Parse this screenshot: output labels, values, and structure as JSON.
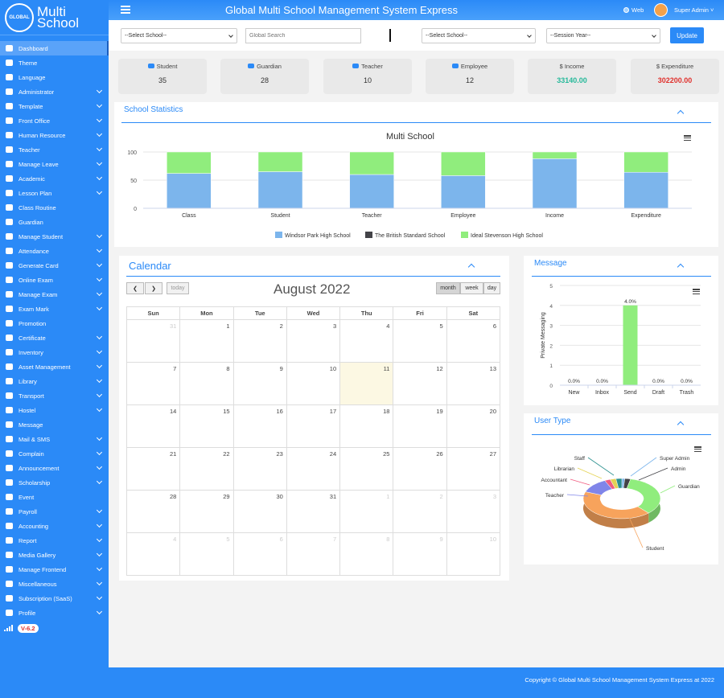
{
  "brand": {
    "logo_globe_text": "GLOBAL",
    "logo_line1": "Multi",
    "logo_line2": "School"
  },
  "sidebar": {
    "items": [
      {
        "label": "Dashboard",
        "icon": "dashboard-icon",
        "chev": false,
        "active": true
      },
      {
        "label": "Theme",
        "icon": "theme-icon",
        "chev": false
      },
      {
        "label": "Language",
        "icon": "language-icon",
        "chev": false
      },
      {
        "label": "Administrator",
        "icon": "user-shield-icon",
        "chev": true
      },
      {
        "label": "Template",
        "icon": "tag-icon",
        "chev": true
      },
      {
        "label": "Front Office",
        "icon": "front-office-icon",
        "chev": true
      },
      {
        "label": "Human Resource",
        "icon": "users-icon",
        "chev": true
      },
      {
        "label": "Teacher",
        "icon": "teacher-icon",
        "chev": true
      },
      {
        "label": "Manage Leave",
        "icon": "paper-plane-icon",
        "chev": true
      },
      {
        "label": "Academic",
        "icon": "bank-icon",
        "chev": true
      },
      {
        "label": "Lesson Plan",
        "icon": "list-icon",
        "chev": true
      },
      {
        "label": "Class Routine",
        "icon": "clock-icon",
        "chev": false
      },
      {
        "label": "Guardian",
        "icon": "paw-icon",
        "chev": false
      },
      {
        "label": "Manage Student",
        "icon": "students-icon",
        "chev": true
      },
      {
        "label": "Attendance",
        "icon": "check-circle-icon",
        "chev": true
      },
      {
        "label": "Generate Card",
        "icon": "card-icon",
        "chev": true
      },
      {
        "label": "Online Exam",
        "icon": "pointer-icon",
        "chev": true
      },
      {
        "label": "Manage Exam",
        "icon": "exam-icon",
        "chev": true
      },
      {
        "label": "Exam Mark",
        "icon": "file-icon",
        "chev": true
      },
      {
        "label": "Promotion",
        "icon": "share-icon",
        "chev": false
      },
      {
        "label": "Certificate",
        "icon": "certificate-icon",
        "chev": true
      },
      {
        "label": "Inventory",
        "icon": "inventory-icon",
        "chev": true
      },
      {
        "label": "Asset Management",
        "icon": "asset-icon",
        "chev": true
      },
      {
        "label": "Library",
        "icon": "book-icon",
        "chev": true
      },
      {
        "label": "Transport",
        "icon": "bus-icon",
        "chev": true
      },
      {
        "label": "Hostel",
        "icon": "bed-icon",
        "chev": true
      },
      {
        "label": "Message",
        "icon": "comments-icon",
        "chev": false
      },
      {
        "label": "Mail & SMS",
        "icon": "envelope-icon",
        "chev": true
      },
      {
        "label": "Complain",
        "icon": "comment-icon",
        "chev": true
      },
      {
        "label": "Announcement",
        "icon": "bullhorn-icon",
        "chev": true
      },
      {
        "label": "Scholarship",
        "icon": "graduation-icon",
        "chev": true
      },
      {
        "label": "Event",
        "icon": "calendar-icon",
        "chev": false
      },
      {
        "label": "Payroll",
        "icon": "dollar-icon",
        "chev": true
      },
      {
        "label": "Accounting",
        "icon": "calculator-icon",
        "chev": true
      },
      {
        "label": "Report",
        "icon": "report-icon",
        "chev": true
      },
      {
        "label": "Media Gallery",
        "icon": "image-icon",
        "chev": true
      },
      {
        "label": "Manage Frontend",
        "icon": "desktop-icon",
        "chev": true
      },
      {
        "label": "Miscellaneous",
        "icon": "misc-icon",
        "chev": true
      },
      {
        "label": "Subscription (SaaS)",
        "icon": "subscription-icon",
        "chev": true
      },
      {
        "label": "Profile",
        "icon": "lock-icon",
        "chev": true
      }
    ],
    "version": "V-6.2"
  },
  "header": {
    "title": "Global Multi School Management System Express",
    "web": "Web",
    "user": "Super Admin"
  },
  "filters": {
    "select_school": "--Select School--",
    "global_search": "Global Search",
    "select_school2": "--Select School--",
    "session_year": "--Session Year--",
    "update": "Update"
  },
  "stats": [
    {
      "label": "Student",
      "value": "35",
      "color": "#333333",
      "icon": "users-icon"
    },
    {
      "label": "Guardian",
      "value": "28",
      "color": "#333333",
      "icon": "paw-icon"
    },
    {
      "label": "Teacher",
      "value": "10",
      "color": "#333333",
      "icon": "users-icon"
    },
    {
      "label": "Employee",
      "value": "12",
      "color": "#333333",
      "icon": "user-icon"
    },
    {
      "label": "$ Income",
      "value": "33140.00",
      "color": "#26b99a",
      "icon": ""
    },
    {
      "label": "$ Expenditure",
      "value": "302200.00",
      "color": "#e0312d",
      "icon": ""
    }
  ],
  "statistics": {
    "panel_title": "School Statistics"
  },
  "chart_data": [
    {
      "type": "bar",
      "title": "Multi School",
      "stacked": true,
      "categories": [
        "Class",
        "Student",
        "Teacher",
        "Employee",
        "Income",
        "Expenditure"
      ],
      "series": [
        {
          "name": "Windsor Park High School",
          "color": "#7cb5ec",
          "values": [
            62,
            65,
            60,
            58,
            88,
            64
          ]
        },
        {
          "name": "The British Standard School",
          "color": "#434348",
          "values": [
            0,
            0,
            0,
            0,
            0,
            0
          ]
        },
        {
          "name": "Ideal Stevenson High School",
          "color": "#90ed7d",
          "values": [
            38,
            35,
            40,
            42,
            12,
            36
          ]
        }
      ],
      "yticks": [
        "100",
        "50",
        "0"
      ],
      "ylim": [
        0,
        100
      ],
      "legend": "bottom",
      "grid": true
    },
    {
      "type": "bar",
      "title": "",
      "categories": [
        "New",
        "Inbox",
        "Send",
        "Draft",
        "Trash"
      ],
      "values": [
        0,
        0,
        4,
        0,
        0
      ],
      "data_labels": [
        "0.0%",
        "0.0%",
        "4.0%",
        "0.0%",
        "0.0%"
      ],
      "ylabel": "Private Messaging",
      "yticks": [
        "5",
        "4",
        "3",
        "2",
        "1",
        "0"
      ],
      "ylim": [
        0,
        5
      ],
      "color": "#90ed7d",
      "grid": true
    },
    {
      "type": "pie",
      "title": "",
      "labels": [
        "Super Admin",
        "Admin",
        "Guardian",
        "Student",
        "Teacher",
        "Accountant",
        "Librarian",
        "Staff"
      ],
      "values": [
        1,
        2,
        28,
        35,
        10,
        2,
        2,
        2
      ],
      "colors": [
        "#7cb5ec",
        "#434348",
        "#90ed7d",
        "#f7a35c",
        "#8085e9",
        "#f15c80",
        "#e4d354",
        "#2b908f"
      ]
    }
  ],
  "calendar": {
    "panel_title": "Calendar",
    "month": "August 2022",
    "today": "today",
    "views": [
      "month",
      "week",
      "day"
    ],
    "active_view": "month",
    "days": [
      "Sun",
      "Mon",
      "Tue",
      "Wed",
      "Thu",
      "Fri",
      "Sat"
    ],
    "cells": [
      "31",
      "1",
      "2",
      "3",
      "4",
      "5",
      "6",
      "7",
      "8",
      "9",
      "10",
      "11",
      "12",
      "13",
      "14",
      "15",
      "16",
      "17",
      "18",
      "19",
      "20",
      "21",
      "22",
      "23",
      "24",
      "25",
      "26",
      "27",
      "28",
      "29",
      "30",
      "31",
      "1",
      "2",
      "3",
      "4",
      "5",
      "6",
      "7",
      "8",
      "9",
      "10"
    ]
  },
  "message": {
    "panel_title": "Message"
  },
  "usertype": {
    "panel_title": "User Type"
  },
  "footer": {
    "text": "Copyright © Global Multi School Management System Express at 2022"
  }
}
